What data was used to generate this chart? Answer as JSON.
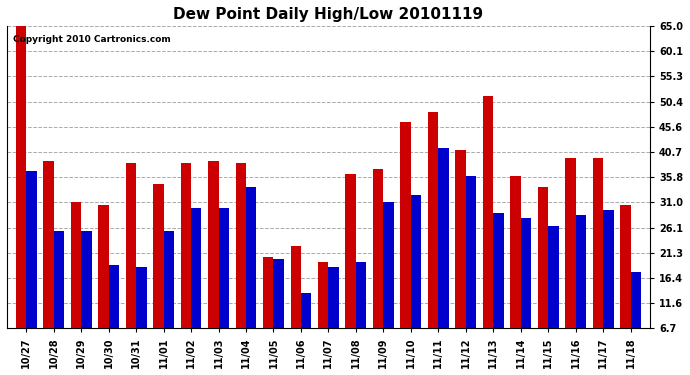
{
  "title": "Dew Point Daily High/Low 20101119",
  "copyright": "Copyright 2010 Cartronics.com",
  "labels": [
    "10/27",
    "10/28",
    "10/29",
    "10/30",
    "10/31",
    "11/01",
    "11/02",
    "11/03",
    "11/04",
    "11/05",
    "11/06",
    "11/07",
    "11/08",
    "11/09",
    "11/10",
    "11/11",
    "11/12",
    "11/13",
    "11/14",
    "11/15",
    "11/16",
    "11/17",
    "11/18"
  ],
  "highs": [
    65.0,
    39.0,
    31.0,
    30.5,
    38.5,
    34.5,
    38.5,
    39.0,
    38.5,
    20.5,
    22.5,
    19.5,
    36.5,
    37.5,
    46.5,
    48.5,
    41.0,
    51.5,
    36.0,
    34.0,
    39.5,
    39.5,
    30.5
  ],
  "lows": [
    37.0,
    25.5,
    25.5,
    19.0,
    18.5,
    25.5,
    30.0,
    30.0,
    34.0,
    20.0,
    13.5,
    18.5,
    19.5,
    31.0,
    32.5,
    41.5,
    36.0,
    29.0,
    28.0,
    26.5,
    28.5,
    29.5,
    17.5
  ],
  "high_color": "#cc0000",
  "low_color": "#0000cc",
  "bg_color": "#ffffff",
  "grid_color": "#aaaaaa",
  "ytick_vals": [
    6.7,
    11.6,
    16.4,
    21.3,
    26.1,
    31.0,
    35.8,
    40.7,
    45.6,
    50.4,
    55.3,
    60.1,
    65.0
  ],
  "ytick_labels": [
    "6.7",
    "11.6",
    "16.4",
    "21.3",
    "26.1",
    "31.0",
    "35.8",
    "40.7",
    "45.6",
    "50.4",
    "55.3",
    "60.1",
    "65.0"
  ],
  "ymin": 6.7,
  "ymax": 65.0,
  "bar_width": 0.38
}
